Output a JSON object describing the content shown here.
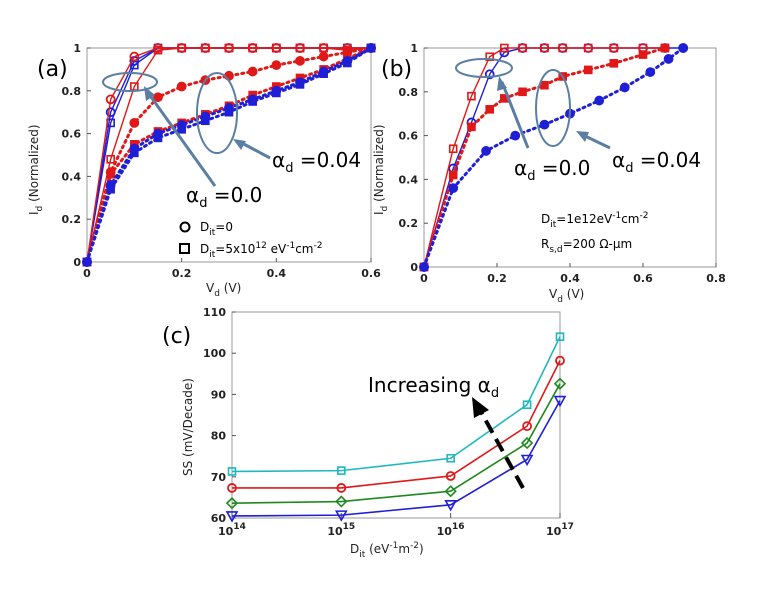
{
  "chart_data": [
    {
      "panel": "(a)",
      "type": "line",
      "xlabel": "V",
      "xlabel_sub": "d",
      "xlabel_unit": "(V)",
      "ylabel": "I",
      "ylabel_sub": "d",
      "ylabel_rest": "(Normalized)",
      "xlim": [
        0,
        0.6
      ],
      "ylim": [
        0,
        1
      ],
      "xticks": [
        0,
        0.2,
        0.4,
        0.6
      ],
      "xtick_labels": [
        "0",
        "0.2",
        "0.4",
        "0.6"
      ],
      "yticks": [
        0,
        0.2,
        0.4,
        0.6,
        0.8,
        1
      ],
      "ytick_labels": [
        "0",
        "0.2",
        "0.4",
        "0.6",
        "0.8",
        "1"
      ],
      "series": [
        {
          "name": "alpha_d=0.0, Dit=0",
          "color": "#1f1fd6",
          "style": "solid",
          "marker": "circle",
          "x": [
            0,
            0.05,
            0.1,
            0.15,
            0.2,
            0.25,
            0.3,
            0.35,
            0.4,
            0.45,
            0.5,
            0.55,
            0.6
          ],
          "y": [
            0,
            0.7,
            0.94,
            1.0,
            1.0,
            1.0,
            1.0,
            1.0,
            1.0,
            1.0,
            1.0,
            1.0,
            1.0
          ]
        },
        {
          "name": "alpha_d=0.0, Dit=5e12",
          "color": "#1f1fd6",
          "style": "solid",
          "marker": "square",
          "x": [
            0,
            0.05,
            0.1,
            0.15,
            0.2,
            0.25,
            0.3,
            0.35,
            0.4,
            0.45,
            0.5,
            0.55,
            0.6
          ],
          "y": [
            0,
            0.65,
            0.92,
            1.0,
            1.0,
            1.0,
            1.0,
            1.0,
            1.0,
            1.0,
            1.0,
            1.0,
            1.0
          ]
        },
        {
          "name": "alpha_d=0.0, Dit=0 (red)",
          "color": "#e01818",
          "style": "solid",
          "marker": "circle",
          "x": [
            0,
            0.05,
            0.1,
            0.15,
            0.2,
            0.25,
            0.3,
            0.35,
            0.4,
            0.45,
            0.5,
            0.55,
            0.6
          ],
          "y": [
            0,
            0.76,
            0.96,
            1.0,
            1.0,
            1.0,
            1.0,
            1.0,
            1.0,
            1.0,
            1.0,
            1.0,
            1.0
          ]
        },
        {
          "name": "alpha_d=0.0, Dit=5e12 (red)",
          "color": "#e01818",
          "style": "solid",
          "marker": "square",
          "x": [
            0,
            0.05,
            0.1,
            0.15,
            0.2,
            0.25,
            0.3,
            0.35,
            0.4,
            0.45,
            0.5,
            0.55,
            0.6
          ],
          "y": [
            0,
            0.48,
            0.82,
            0.99,
            1.0,
            1.0,
            1.0,
            1.0,
            1.0,
            1.0,
            1.0,
            0.99,
            1.0
          ]
        },
        {
          "name": "alpha_d=0.04, Dit=0",
          "color": "#e01818",
          "style": "dotted",
          "marker": "circle",
          "x": [
            0,
            0.05,
            0.1,
            0.15,
            0.2,
            0.25,
            0.3,
            0.35,
            0.4,
            0.45,
            0.5,
            0.55,
            0.6
          ],
          "y": [
            0,
            0.42,
            0.65,
            0.77,
            0.82,
            0.85,
            0.87,
            0.89,
            0.92,
            0.94,
            0.96,
            0.98,
            1.0
          ]
        },
        {
          "name": "alpha_d=0.04, Dit=5e12",
          "color": "#e01818",
          "style": "dotted",
          "marker": "square",
          "x": [
            0,
            0.05,
            0.1,
            0.15,
            0.2,
            0.25,
            0.3,
            0.35,
            0.4,
            0.45,
            0.5,
            0.55,
            0.6
          ],
          "y": [
            0,
            0.41,
            0.55,
            0.61,
            0.65,
            0.69,
            0.73,
            0.78,
            0.82,
            0.86,
            0.9,
            0.95,
            1.0
          ]
        },
        {
          "name": "alpha_d=0.04, Dit=0 (blue)",
          "color": "#1f1fd6",
          "style": "dotted",
          "marker": "circle",
          "x": [
            0,
            0.05,
            0.1,
            0.15,
            0.2,
            0.25,
            0.3,
            0.35,
            0.4,
            0.45,
            0.5,
            0.55,
            0.6
          ],
          "y": [
            0,
            0.36,
            0.53,
            0.6,
            0.64,
            0.68,
            0.72,
            0.76,
            0.8,
            0.84,
            0.89,
            0.94,
            1.0
          ]
        },
        {
          "name": "alpha_d=0.04, Dit=5e12 (blue)",
          "color": "#1f1fd6",
          "style": "dotted",
          "marker": "square",
          "x": [
            0,
            0.05,
            0.1,
            0.15,
            0.2,
            0.25,
            0.3,
            0.35,
            0.4,
            0.45,
            0.5,
            0.55,
            0.6
          ],
          "y": [
            0,
            0.34,
            0.51,
            0.58,
            0.62,
            0.66,
            0.7,
            0.75,
            0.79,
            0.83,
            0.88,
            0.93,
            1.0
          ]
        }
      ],
      "annotations": {
        "alpha_low": {
          "sym": "α",
          "sub": "d",
          "val": " =0.0"
        },
        "alpha_high": {
          "sym": "α",
          "sub": "d",
          "val": " =0.04"
        }
      },
      "legend": [
        {
          "marker": "circle",
          "label": "D",
          "sub": "it",
          "rest": "=0"
        },
        {
          "marker": "square",
          "label": "D",
          "sub": "it",
          "rest": "=5x10",
          "sup": "12",
          "rest2": " eV",
          "sup2": "-1",
          "rest3": "cm",
          "sup3": "-2"
        }
      ]
    },
    {
      "panel": "(b)",
      "type": "line",
      "xlabel": "V",
      "xlabel_sub": "d",
      "xlabel_unit": "(V)",
      "ylabel": "I",
      "ylabel_sub": "d",
      "ylabel_rest": "(Normalized)",
      "xlim": [
        0,
        0.8
      ],
      "ylim": [
        0,
        1
      ],
      "xticks": [
        0,
        0.2,
        0.4,
        0.6,
        0.8
      ],
      "xtick_labels": [
        "0",
        "0.2",
        "0.4",
        "0.6",
        "0.8"
      ],
      "yticks": [
        0,
        0.2,
        0.4,
        0.6,
        0.8,
        1
      ],
      "ytick_labels": [
        "0",
        "0.2",
        "0.4",
        "0.6",
        "0.8",
        "1"
      ],
      "series": [
        {
          "name": "alpha_d=0.0 blue",
          "color": "#1f1fd6",
          "style": "solid",
          "marker": "circle",
          "x": [
            0,
            0.08,
            0.13,
            0.18,
            0.22,
            0.27,
            0.33,
            0.38,
            0.45,
            0.52,
            0.6,
            0.66,
            0.71
          ],
          "y": [
            0,
            0.45,
            0.66,
            0.88,
            0.98,
            1.0,
            1.0,
            1.0,
            1.0,
            1.0,
            1.0,
            1.0,
            1.0
          ]
        },
        {
          "name": "alpha_d=0.0 red",
          "color": "#e01818",
          "style": "solid",
          "marker": "square",
          "x": [
            0,
            0.08,
            0.13,
            0.18,
            0.22,
            0.27,
            0.33,
            0.38,
            0.45,
            0.52,
            0.6,
            0.66
          ],
          "y": [
            0,
            0.54,
            0.78,
            0.96,
            1.0,
            1.0,
            1.0,
            1.0,
            1.0,
            1.0,
            1.0,
            1.0
          ]
        },
        {
          "name": "alpha_d=0.04 red",
          "color": "#e01818",
          "style": "dotted",
          "marker": "square",
          "x": [
            0,
            0.08,
            0.13,
            0.18,
            0.22,
            0.27,
            0.33,
            0.38,
            0.45,
            0.52,
            0.6,
            0.66
          ],
          "y": [
            0,
            0.42,
            0.64,
            0.72,
            0.77,
            0.8,
            0.83,
            0.87,
            0.9,
            0.93,
            0.97,
            1.0
          ]
        },
        {
          "name": "alpha_d=0.04 blue",
          "color": "#1f1fd6",
          "style": "dotted",
          "marker": "circle",
          "x": [
            0,
            0.08,
            0.17,
            0.25,
            0.33,
            0.4,
            0.48,
            0.55,
            0.62,
            0.67,
            0.71
          ],
          "y": [
            0,
            0.36,
            0.53,
            0.6,
            0.65,
            0.7,
            0.76,
            0.82,
            0.89,
            0.95,
            1.0
          ]
        }
      ],
      "annotations": {
        "alpha_low": {
          "sym": "α",
          "sub": "d",
          "val": " =0.0"
        },
        "alpha_high": {
          "sym": "α",
          "sub": "d",
          "val": " =0.04"
        },
        "dit_note": {
          "label": "D",
          "sub": "it",
          "rest": "=1e12eV",
          "sup": "-1",
          "rest2": "cm",
          "sup2": "-2"
        },
        "rs_note": {
          "label": "R",
          "sub": "s,d",
          "rest": "=200 Ω-μm"
        }
      }
    },
    {
      "panel": "(c)",
      "type": "line",
      "xlabel": "D",
      "xlabel_sub": "it",
      "xlabel_unit_pre": " (eV",
      "xlabel_sup1": "-1",
      "xlabel_mid": "m",
      "xlabel_sup2": "-2",
      "xlabel_end": ")",
      "ylabel": "SS (mV/Decade)",
      "xscale": "log",
      "xlim": [
        100000000000000.0,
        1e+17
      ],
      "ylim": [
        60,
        110
      ],
      "xtick_exps": [
        14,
        15,
        16,
        17
      ],
      "xtick_base": "10",
      "yticks": [
        60,
        70,
        80,
        90,
        100,
        110
      ],
      "ytick_labels": [
        "60",
        "70",
        "80",
        "90",
        "100",
        "110"
      ],
      "x": [
        100000000000000.0,
        1000000000000000.0,
        1e+16,
        5e+16,
        1e+17
      ],
      "series": [
        {
          "name": "cyan",
          "color": "#20b8c0",
          "marker": "square",
          "values": [
            71.3,
            71.5,
            74.5,
            87.5,
            104
          ]
        },
        {
          "name": "red",
          "color": "#e01818",
          "marker": "circle",
          "values": [
            67.3,
            67.3,
            70.2,
            82.3,
            98.2
          ]
        },
        {
          "name": "green",
          "color": "#1e8a1e",
          "marker": "diamond",
          "values": [
            63.6,
            64,
            66.5,
            78.2,
            92.6
          ]
        },
        {
          "name": "blue",
          "color": "#1f1fd6",
          "marker": "triangle-down",
          "values": [
            60.5,
            60.7,
            63.2,
            74.2,
            88.5
          ]
        }
      ],
      "annotation": {
        "text": "Increasing ",
        "sym": "α",
        "sub": "d"
      }
    }
  ]
}
